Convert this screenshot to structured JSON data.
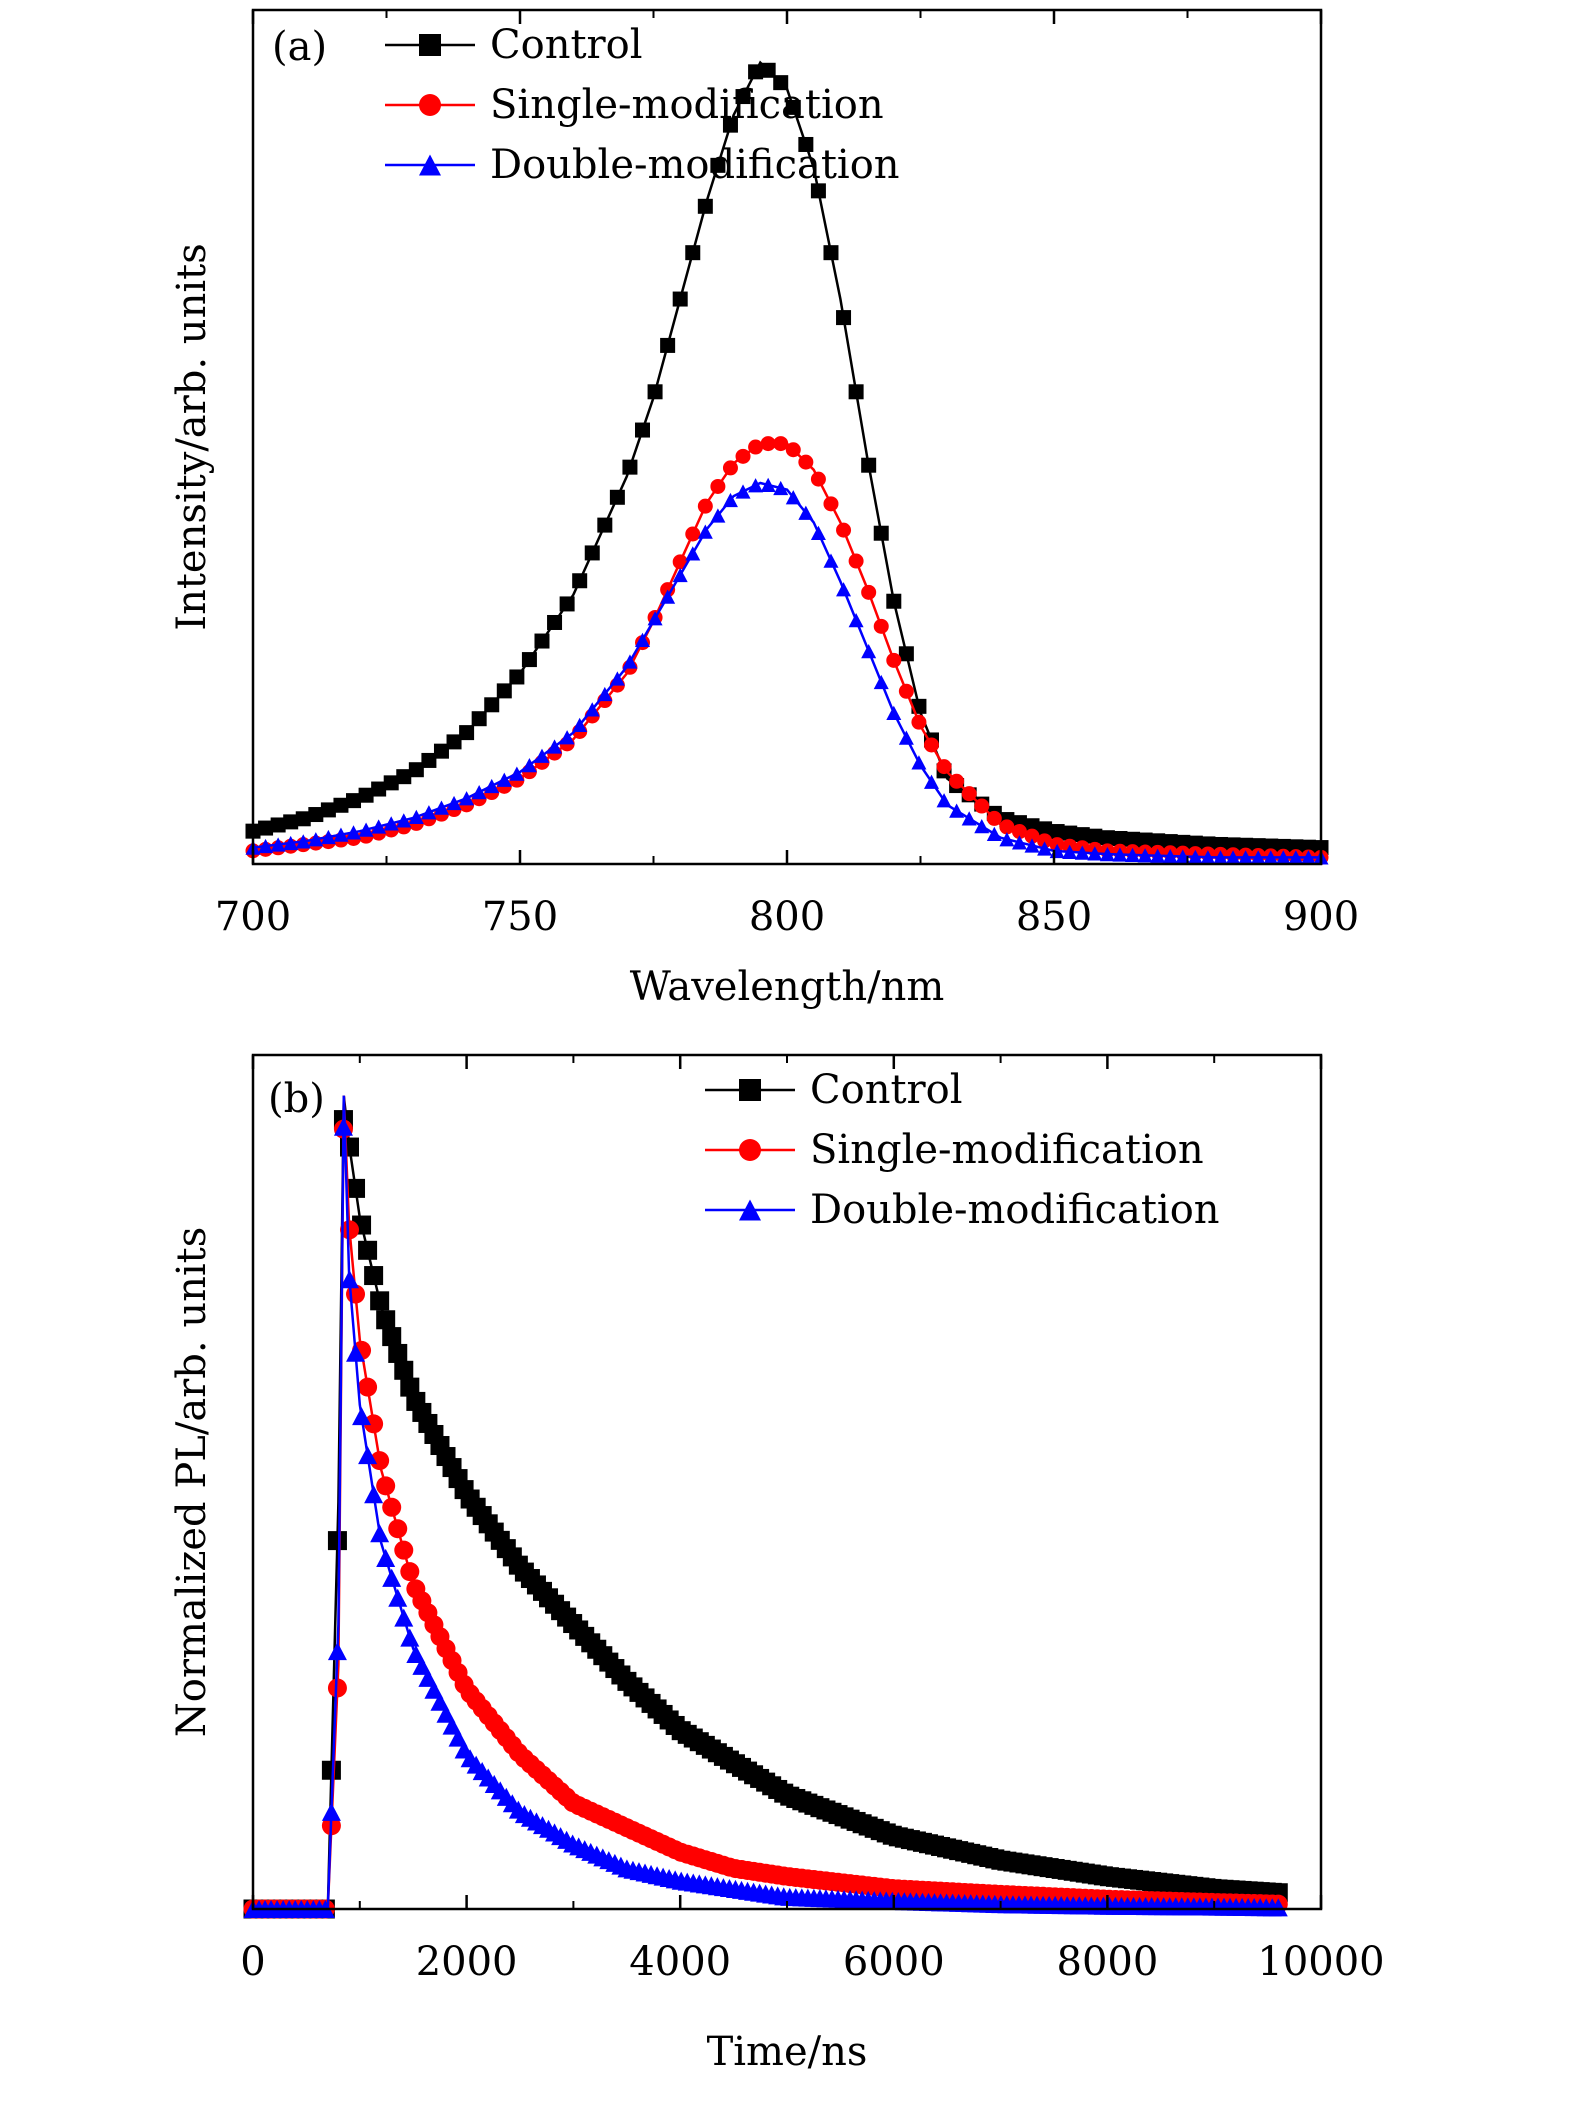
{
  "chart_data": [
    {
      "panel": "(a)",
      "type": "line",
      "xlabel": "Wavelength/nm",
      "ylabel": "Intensity/arb. units",
      "xlim": [
        700,
        900
      ],
      "ylim": [
        0,
        1.3
      ],
      "xticks": [
        "700",
        "750",
        "800",
        "850",
        "900"
      ],
      "grid": false,
      "legend_position": "top-left",
      "series": [
        {
          "name": "Control",
          "color": "#000000",
          "marker": "square",
          "x": [
            700,
            710,
            720,
            730,
            740,
            750,
            760,
            770,
            775,
            780,
            785,
            790,
            795,
            800,
            805,
            810,
            815,
            820,
            825,
            830,
            840,
            850,
            860,
            880,
            900
          ],
          "y": [
            0.05,
            0.07,
            0.1,
            0.14,
            0.2,
            0.29,
            0.41,
            0.59,
            0.71,
            0.86,
            1.01,
            1.14,
            1.22,
            1.18,
            1.06,
            0.86,
            0.62,
            0.4,
            0.23,
            0.13,
            0.07,
            0.05,
            0.04,
            0.03,
            0.025
          ]
        },
        {
          "name": "Single-modification",
          "color": "#ff0000",
          "marker": "circle",
          "x": [
            700,
            710,
            720,
            730,
            740,
            750,
            760,
            770,
            775,
            780,
            785,
            790,
            795,
            800,
            805,
            810,
            815,
            820,
            825,
            830,
            840,
            850,
            860,
            880,
            900
          ],
          "y": [
            0.02,
            0.03,
            0.04,
            0.06,
            0.09,
            0.13,
            0.19,
            0.29,
            0.37,
            0.46,
            0.55,
            0.61,
            0.64,
            0.64,
            0.6,
            0.52,
            0.42,
            0.31,
            0.21,
            0.14,
            0.06,
            0.03,
            0.02,
            0.015,
            0.01
          ]
        },
        {
          "name": "Double-modification",
          "color": "#0000ff",
          "marker": "triangle",
          "x": [
            700,
            710,
            720,
            730,
            740,
            750,
            760,
            770,
            775,
            780,
            785,
            790,
            795,
            800,
            805,
            810,
            815,
            820,
            825,
            830,
            840,
            850,
            860,
            880,
            900
          ],
          "y": [
            0.025,
            0.035,
            0.05,
            0.07,
            0.1,
            0.14,
            0.2,
            0.3,
            0.37,
            0.44,
            0.51,
            0.56,
            0.58,
            0.57,
            0.52,
            0.43,
            0.33,
            0.23,
            0.15,
            0.09,
            0.04,
            0.02,
            0.015,
            0.01,
            0.01
          ]
        }
      ]
    },
    {
      "panel": "(b)",
      "type": "line",
      "xlabel": "Time/ns",
      "ylabel": "Normalized PL/arb. units",
      "xlim": [
        0,
        10000
      ],
      "ylim": [
        0,
        1.05
      ],
      "xticks": [
        "0",
        "2000",
        "4000",
        "6000",
        "8000",
        "10000"
      ],
      "grid": false,
      "legend_position": "top-right",
      "series": [
        {
          "name": "Control",
          "color": "#000000",
          "marker": "square",
          "x": [
            0,
            700,
            800,
            850,
            900,
            1000,
            1200,
            1500,
            2000,
            2500,
            3000,
            3500,
            4000,
            4500,
            5000,
            6000,
            7000,
            8000,
            9000,
            9600
          ],
          "y": [
            0.0,
            0.0,
            0.5,
            1.0,
            0.94,
            0.85,
            0.74,
            0.63,
            0.51,
            0.42,
            0.35,
            0.28,
            0.22,
            0.18,
            0.14,
            0.09,
            0.06,
            0.04,
            0.025,
            0.02
          ]
        },
        {
          "name": "Single-modification",
          "color": "#ff0000",
          "marker": "circle",
          "x": [
            0,
            700,
            800,
            850,
            900,
            1000,
            1200,
            1500,
            2000,
            2500,
            3000,
            3500,
            4000,
            4500,
            5000,
            6000,
            7000,
            8000,
            9000,
            9600
          ],
          "y": [
            0.0,
            0.0,
            0.3,
            1.0,
            0.84,
            0.7,
            0.54,
            0.4,
            0.27,
            0.19,
            0.13,
            0.1,
            0.07,
            0.05,
            0.04,
            0.025,
            0.018,
            0.012,
            0.008,
            0.006
          ]
        },
        {
          "name": "Double-modification",
          "color": "#0000ff",
          "marker": "triangle",
          "x": [
            0,
            700,
            800,
            850,
            900,
            1000,
            1200,
            1500,
            2000,
            2500,
            3000,
            3500,
            4000,
            4500,
            5000,
            6000,
            7000,
            8000,
            9000,
            9600
          ],
          "y": [
            0.0,
            0.0,
            0.35,
            1.0,
            0.78,
            0.62,
            0.45,
            0.32,
            0.19,
            0.12,
            0.08,
            0.05,
            0.035,
            0.025,
            0.015,
            0.01,
            0.006,
            0.004,
            0.003,
            0.002
          ]
        }
      ]
    }
  ]
}
